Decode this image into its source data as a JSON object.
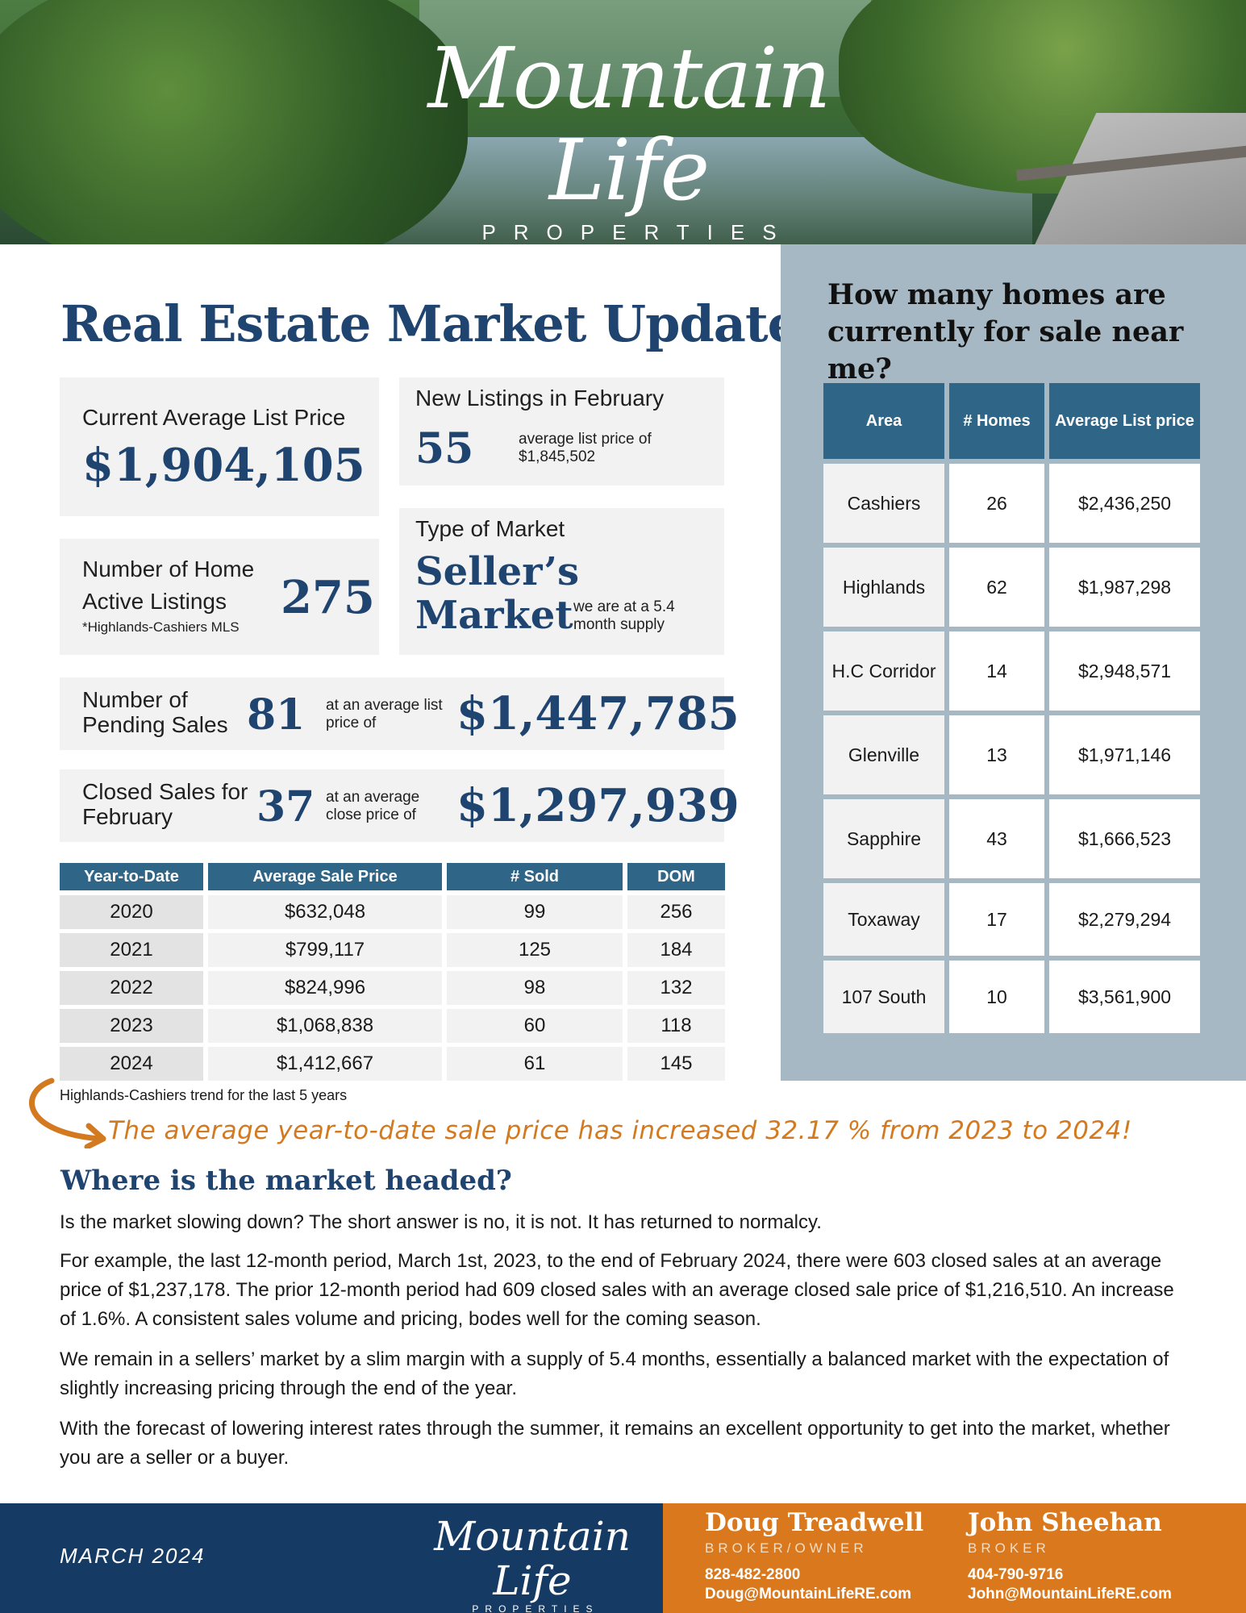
{
  "hero": {
    "logo_script": "Mountain Life",
    "logo_sub": "PROPERTIES"
  },
  "title": "Real Estate Market Update",
  "avg_list": {
    "label": "Current Average List Price",
    "value": "$1,904,105"
  },
  "new_listings": {
    "label": "New Listings in February",
    "value": "55",
    "note": "average list price of $1,845,502"
  },
  "active_listings": {
    "label": "Number of Home Active Listings",
    "value": "275",
    "footnote": "*Highlands-Cashiers MLS"
  },
  "market_type": {
    "label": "Type of Market",
    "value": "Seller’s Market",
    "note": "we are at a  5.4 month supply"
  },
  "pending": {
    "label": "Number of Pending Sales",
    "count": "81",
    "note": "at an average list price of",
    "price": "$1,447,785"
  },
  "closed": {
    "label": "Closed Sales for February",
    "count": "37",
    "note": "at an average close price of",
    "price": "$1,297,939"
  },
  "ytd_table": {
    "headers": [
      "Year-to-Date",
      "Average Sale Price",
      "# Sold",
      "DOM"
    ],
    "rows": [
      [
        "2020",
        "$632,048",
        "99",
        "256"
      ],
      [
        "2021",
        "$799,117",
        "125",
        "184"
      ],
      [
        "2022",
        "$824,996",
        "98",
        "132"
      ],
      [
        "2023",
        "$1,068,838",
        "60",
        "118"
      ],
      [
        "2024",
        "$1,412,667",
        "61",
        "145"
      ]
    ]
  },
  "trend_caption": "Highlands-Cashiers trend for the last 5 years",
  "callout": "The average year-to-date sale price has increased 32.17 % from 2023 to 2024!",
  "panel": {
    "title": "How many homes are currently for sale near me?",
    "headers": [
      "Area",
      "# Homes",
      "Average List price"
    ],
    "rows": [
      [
        "Cashiers",
        "26",
        "$2,436,250"
      ],
      [
        "Highlands",
        "62",
        "$1,987,298"
      ],
      [
        "H.C Corridor",
        "14",
        "$2,948,571"
      ],
      [
        "Glenville",
        "13",
        "$1,971,146"
      ],
      [
        "Sapphire",
        "43",
        "$1,666,523"
      ],
      [
        "Toxaway",
        "17",
        "$2,279,294"
      ],
      [
        "107 South",
        "10",
        "$3,561,900"
      ]
    ]
  },
  "headed": {
    "title": "Where is the market headed?",
    "p1": "Is the market slowing down? The short answer is no, it is not. It has returned to normalcy.",
    "p2": "For example, the last 12-month period, March 1st, 2023, to the end of February 2024, there were 603 closed sales at an average price of $1,237,178. The prior 12-month period had 609 closed sales with an average closed sale price of $1,216,510. An increase of 1.6%. A consistent sales volume and pricing, bodes well for the coming season.",
    "p3": "We remain in a sellers’ market by a slim margin with a supply of 5.4 months, essentially a balanced market with the expectation of slightly increasing pricing through the end of the year.",
    "p4": "With the forecast of lowering interest rates through the summer, it remains an excellent opportunity to get into the market, whether you are a seller or a buyer."
  },
  "footer": {
    "date": "MARCH 2024",
    "logo_script": "Mountain Life",
    "logo_sub": "PROPERTIES",
    "agents": [
      {
        "name": "Doug Treadwell",
        "role": "BROKER/OWNER",
        "phone": "828-482-2800",
        "email": "Doug@MountainLifeRE.com"
      },
      {
        "name": "John Sheehan",
        "role": "BROKER",
        "phone": "404-790-9716",
        "email": "John@MountainLifeRE.com"
      }
    ]
  },
  "colors": {
    "navy": "#1f4470",
    "table_header": "#2f6586",
    "accent_orange": "#d9781c",
    "panel_bg": "#a6b8c3",
    "footer_navy": "#153b64"
  }
}
